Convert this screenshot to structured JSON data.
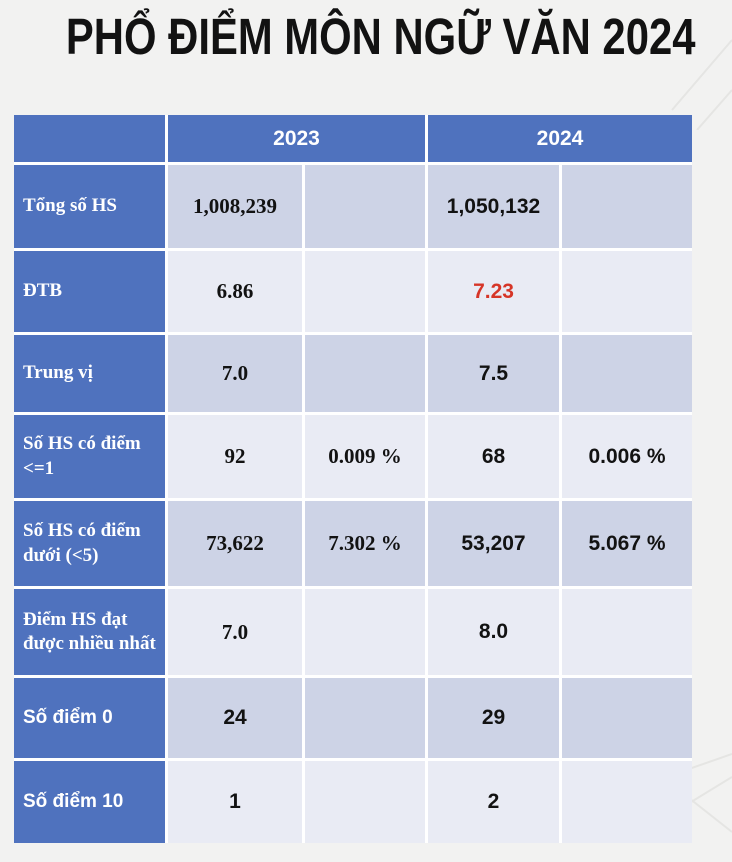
{
  "title": "PHỔ ĐIỂM MÔN NGỮ VĂN 2024",
  "colors": {
    "header_blue": "#4F72BE",
    "band_dark": "#CDD3E6",
    "band_light": "#E9EBF4",
    "highlight_red": "#D63527",
    "page_bg": "#F2F2F1",
    "text_dark": "#121212",
    "label_text": "#FFFFFF",
    "pattern_line": "#E5E5E3"
  },
  "chart_data": {
    "type": "table",
    "title": "PHỔ ĐIỂM MÔN NGỮ VĂN 2024",
    "columns": [
      "",
      "2023",
      "2023 %",
      "2024",
      "2024 %"
    ],
    "rows": [
      [
        "Tổng số HS",
        "1,008,239",
        "",
        "1,050,132",
        ""
      ],
      [
        "ĐTB",
        "6.86",
        "",
        "7.23",
        ""
      ],
      [
        "Trung vị",
        "7.0",
        "",
        "7.5",
        ""
      ],
      [
        "Số HS có điểm <=1",
        "92",
        "0.009 %",
        "68",
        "0.006 %"
      ],
      [
        "Số HS có điểm dưới (<5)",
        "73,622",
        "7.302 %",
        "53,207",
        "5.067 %"
      ],
      [
        "Điểm HS đạt được nhiều nhất",
        "7.0",
        "",
        "8.0",
        ""
      ],
      [
        "Số điểm 0",
        "24",
        "",
        "29",
        ""
      ],
      [
        "Số điểm 10",
        "1",
        "",
        "2",
        ""
      ]
    ]
  },
  "table": {
    "year_headers": [
      "2023",
      "2024"
    ],
    "rows": [
      {
        "label": "Tổng số HS",
        "label_font": "serif",
        "band": "dark",
        "cells": [
          {
            "text": "1,008,239",
            "font": "serif"
          },
          {
            "text": "",
            "font": "serif"
          },
          {
            "text": "1,050,132",
            "font": "sans"
          },
          {
            "text": "",
            "font": "sans"
          }
        ]
      },
      {
        "label": "ĐTB",
        "label_font": "serif",
        "band": "light",
        "cells": [
          {
            "text": "6.86",
            "font": "serif"
          },
          {
            "text": "",
            "font": "serif"
          },
          {
            "text": "7.23",
            "font": "sans",
            "color": "red"
          },
          {
            "text": "",
            "font": "sans"
          }
        ]
      },
      {
        "label": "Trung vị",
        "label_font": "serif",
        "band": "dark",
        "cells": [
          {
            "text": "7.0",
            "font": "serif"
          },
          {
            "text": "",
            "font": "serif"
          },
          {
            "text": "7.5",
            "font": "sans"
          },
          {
            "text": "",
            "font": "sans"
          }
        ]
      },
      {
        "label": "Số HS có điểm <=1",
        "label_font": "serif",
        "band": "light",
        "cells": [
          {
            "text": "92",
            "font": "serif"
          },
          {
            "text": "0.009 %",
            "font": "serif"
          },
          {
            "text": "68",
            "font": "sans"
          },
          {
            "text": "0.006 %",
            "font": "sans"
          }
        ]
      },
      {
        "label": "Số HS có điểm dưới (<5)",
        "label_font": "serif",
        "band": "dark",
        "cells": [
          {
            "text": "73,622",
            "font": "serif"
          },
          {
            "text": "7.302 %",
            "font": "serif"
          },
          {
            "text": "53,207",
            "font": "sans"
          },
          {
            "text": "5.067 %",
            "font": "sans"
          }
        ]
      },
      {
        "label": "Điểm HS đạt được nhiều nhất",
        "label_font": "serif",
        "band": "light",
        "cells": [
          {
            "text": "7.0",
            "font": "serif"
          },
          {
            "text": "",
            "font": "serif"
          },
          {
            "text": "8.0",
            "font": "sans"
          },
          {
            "text": "",
            "font": "sans"
          }
        ]
      },
      {
        "label": "Số điểm 0",
        "label_font": "sans",
        "band": "dark",
        "cells": [
          {
            "text": "24",
            "font": "sans"
          },
          {
            "text": "",
            "font": "sans"
          },
          {
            "text": "29",
            "font": "sans"
          },
          {
            "text": "",
            "font": "sans"
          }
        ]
      },
      {
        "label": "Số điểm 10",
        "label_font": "sans",
        "band": "light",
        "cells": [
          {
            "text": "1",
            "font": "sans"
          },
          {
            "text": "",
            "font": "sans"
          },
          {
            "text": "2",
            "font": "sans"
          },
          {
            "text": "",
            "font": "sans"
          }
        ]
      }
    ]
  }
}
